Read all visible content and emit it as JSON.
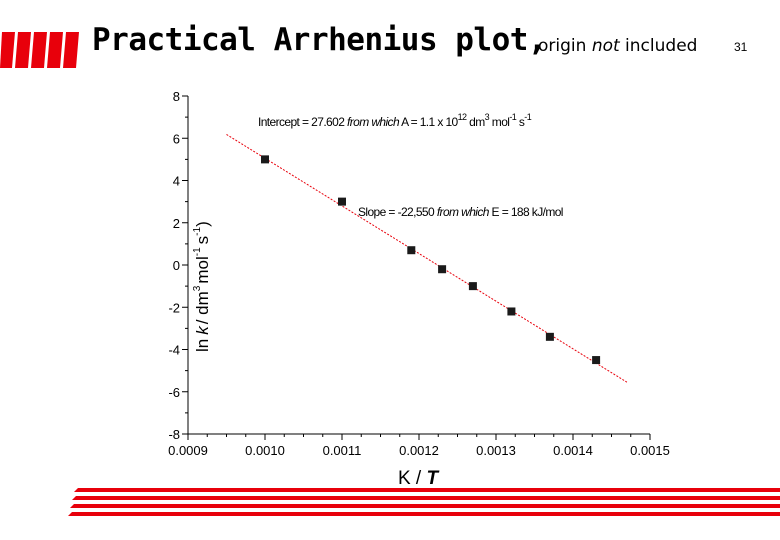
{
  "slide": {
    "title": "Practical Arrhenius plot,",
    "subtitle_prefix": "origin ",
    "subtitle_emph": "not",
    "subtitle_suffix": " included",
    "slide_number": "31",
    "accent_color": "#e8000b"
  },
  "chart_data": {
    "type": "scatter",
    "x": [
      0.001,
      0.0011,
      0.00119,
      0.00123,
      0.00127,
      0.00132,
      0.00137,
      0.00143
    ],
    "y": [
      5.0,
      3.0,
      0.7,
      -0.2,
      -1.0,
      -2.2,
      -3.4,
      -4.5
    ],
    "trendline": {
      "intercept": 27.602,
      "slope": -22550,
      "color": "#e8000b",
      "style": "dashed"
    },
    "xlim": [
      0.0009,
      0.0015
    ],
    "ylim": [
      -8,
      8
    ],
    "xticks": [
      "0.0009",
      "0.0010",
      "0.0011",
      "0.0012",
      "0.0013",
      "0.0014",
      "0.0015"
    ],
    "yticks": [
      "8",
      "6",
      "4",
      "2",
      "0",
      "-2",
      "-4",
      "-6",
      "-8"
    ],
    "xlabel_prefix": "K / ",
    "xlabel_var": "T",
    "ylabel": "ln(k / dm3 mol-1 s-1)",
    "annotations": {
      "intercept": {
        "t1": "Intercept = 27.602 ",
        "t2": "from which",
        "t3": " A = 1.1 x 10",
        "t4": "12",
        "t5": " dm",
        "t6": "3",
        "t7": " mol",
        "t8": "-1",
        "t9": " s",
        "t10": "-1"
      },
      "slope": {
        "t1": "Slope = -22,550  ",
        "t2": "from which",
        "t3": " E = 188 kJ/mol"
      }
    },
    "marker_color": "#1a1a1a",
    "grid": false
  }
}
